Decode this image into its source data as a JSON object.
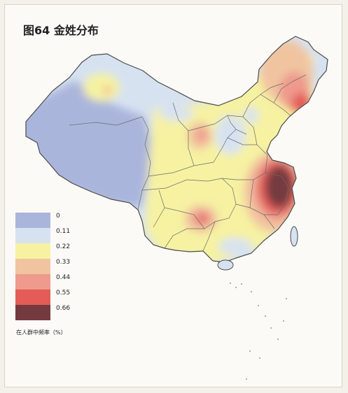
{
  "figure": {
    "title": "图64  金姓分布",
    "legend_caption": "在人群中频率（%）"
  },
  "legend": {
    "items": [
      {
        "label": "0",
        "color": "#aab5dc"
      },
      {
        "label": "0.11",
        "color": "#d7e2f1"
      },
      {
        "label": "0.22",
        "color": "#f6f2a2"
      },
      {
        "label": "0.33",
        "color": "#f1c4a0"
      },
      {
        "label": "0.44",
        "color": "#ee9a8d"
      },
      {
        "label": "0.55",
        "color": "#e35c57"
      },
      {
        "label": "0.66",
        "color": "#743a40"
      }
    ]
  },
  "colors": {
    "background": "#fbfaf6",
    "border": "#4a4a4a"
  }
}
